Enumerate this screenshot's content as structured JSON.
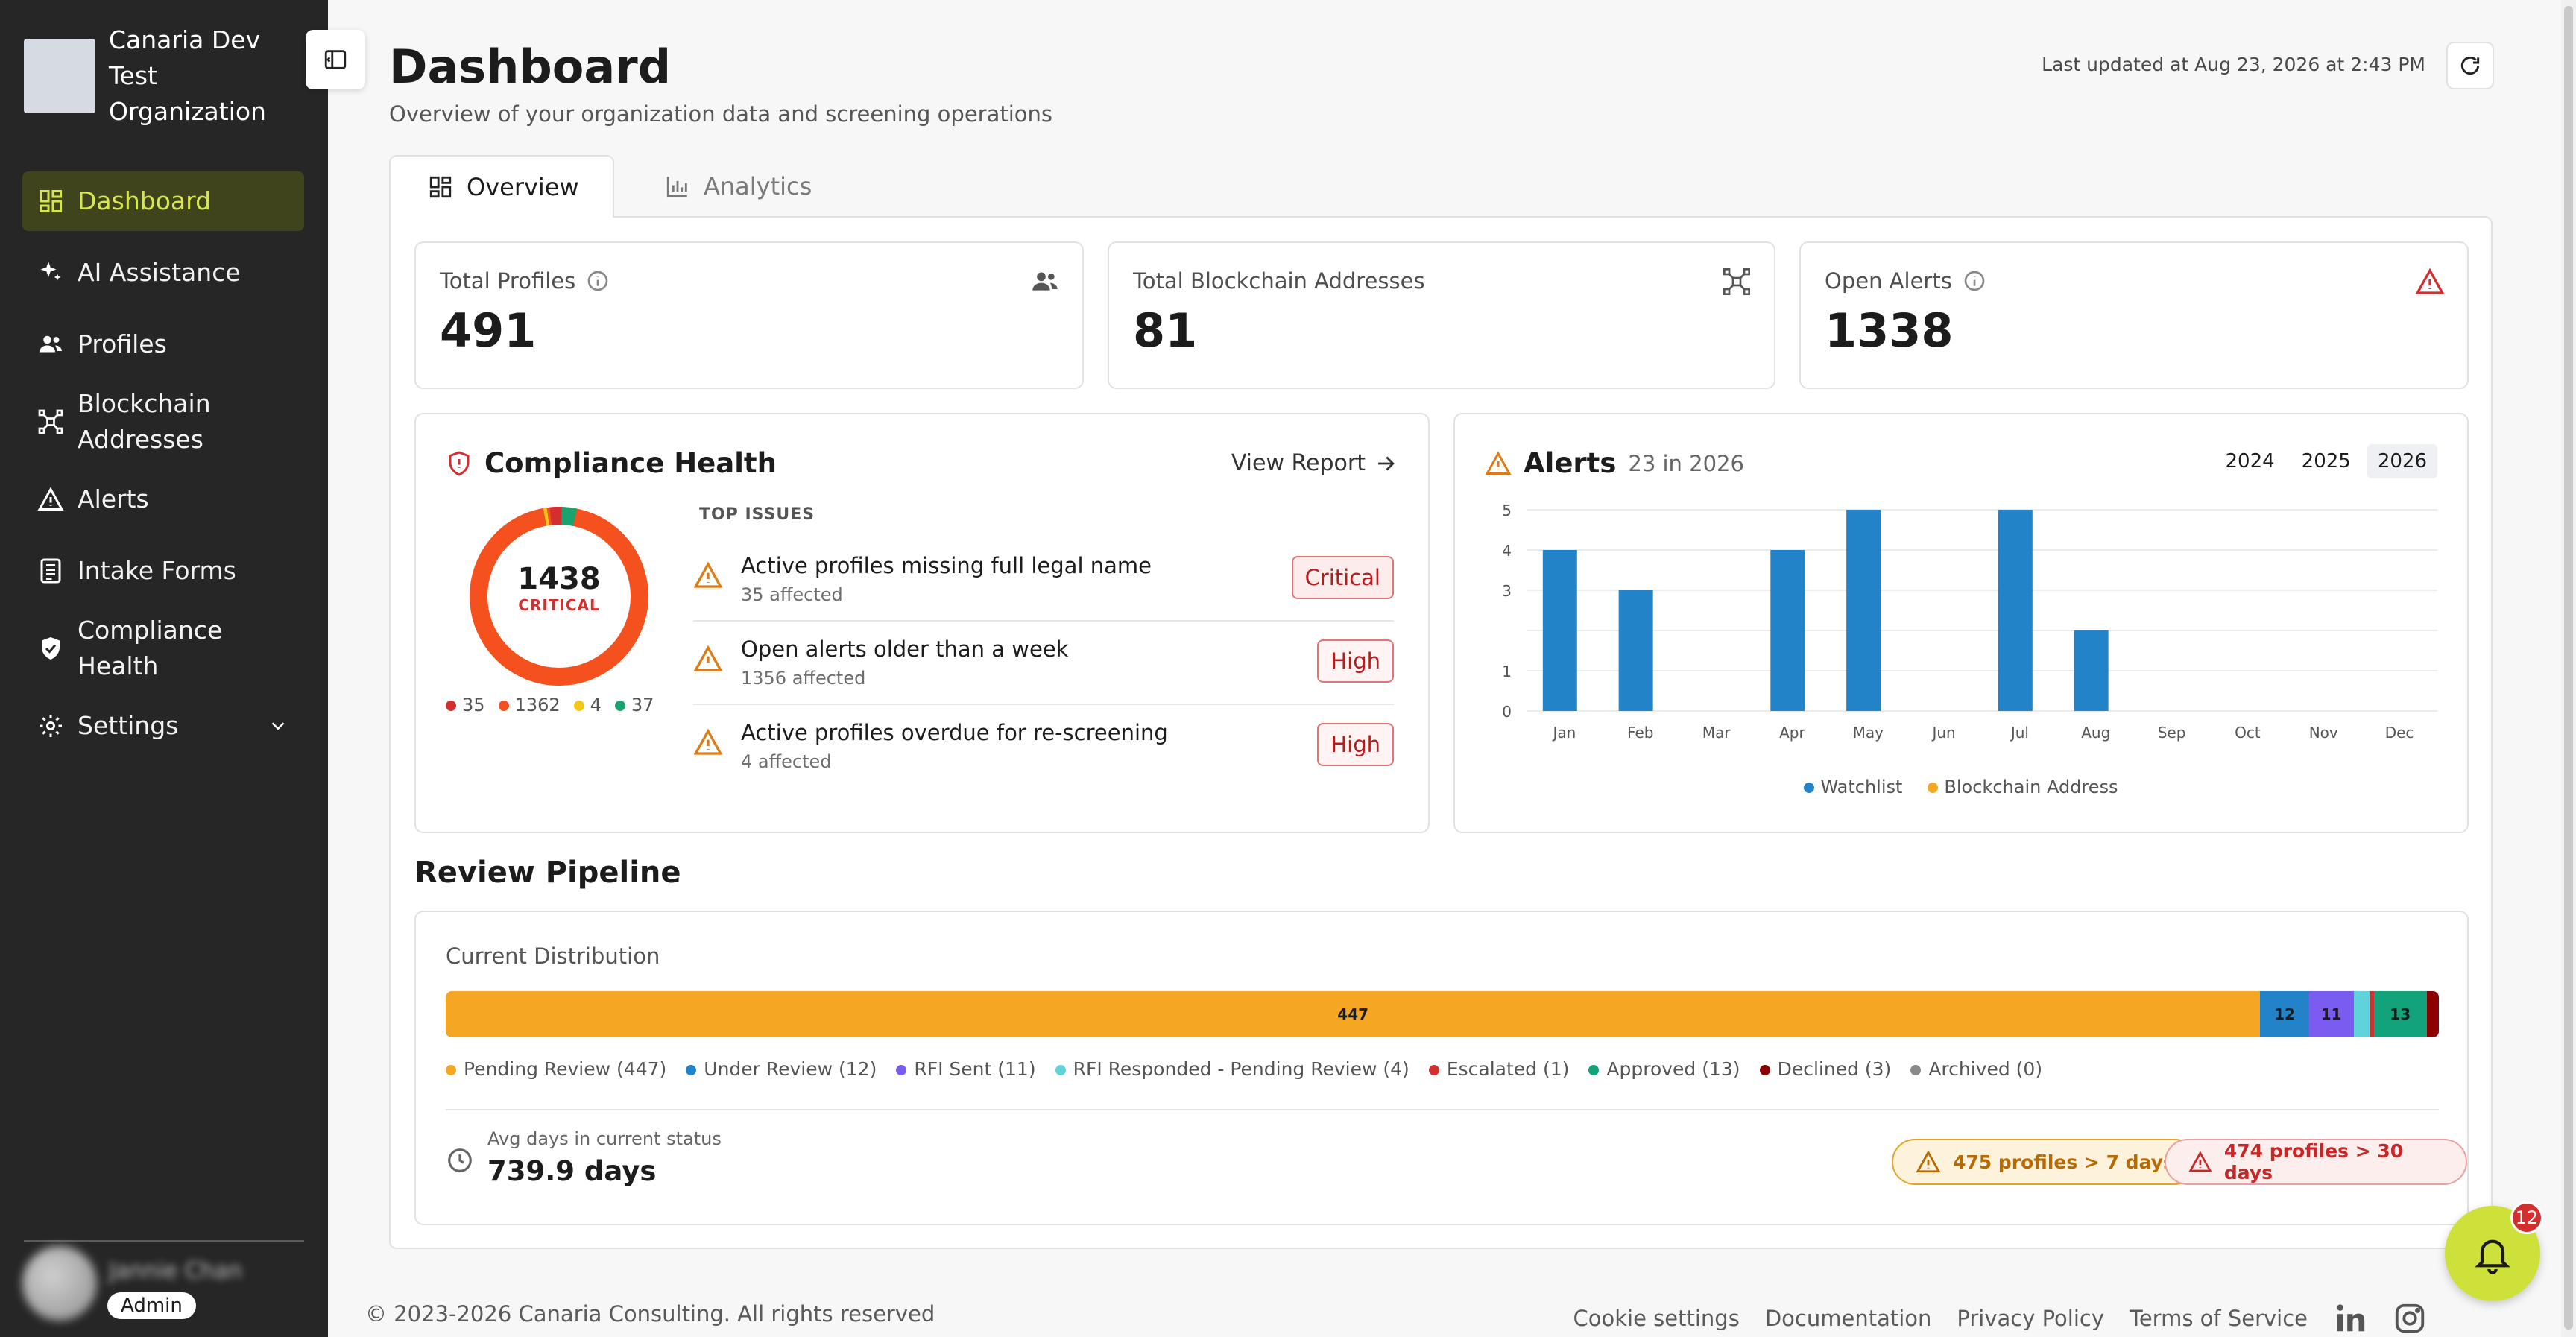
{
  "org": {
    "name": "Canaria Dev Test Organization"
  },
  "sidebar": {
    "items": [
      {
        "label": "Dashboard",
        "icon": "dashboard-icon",
        "active": true
      },
      {
        "label": "AI Assistance",
        "icon": "sparkle-icon"
      },
      {
        "label": "Profiles",
        "icon": "users-icon"
      },
      {
        "label": "Blockchain Addresses",
        "icon": "blockchain-icon"
      },
      {
        "label": "Alerts",
        "icon": "warning-icon"
      },
      {
        "label": "Intake Forms",
        "icon": "form-icon"
      },
      {
        "label": "Compliance Health",
        "icon": "shield-icon"
      },
      {
        "label": "Settings",
        "icon": "gear-icon"
      }
    ],
    "user": {
      "name": "Jannie Chan",
      "role": "Admin"
    }
  },
  "header": {
    "title": "Dashboard",
    "subtitle": "Overview of your organization data and screening operations",
    "last_updated": "Last updated at Aug 23, 2026 at 2:43 PM"
  },
  "tabs": [
    {
      "label": "Overview",
      "active": true
    },
    {
      "label": "Analytics",
      "active": false
    }
  ],
  "stats": {
    "profiles": {
      "label": "Total Profiles",
      "value": "491"
    },
    "blockchain": {
      "label": "Total Blockchain Addresses",
      "value": "81"
    },
    "alerts": {
      "label": "Open Alerts",
      "value": "1338"
    }
  },
  "compliance": {
    "title": "Compliance Health",
    "view_report": "View Report",
    "total": "1438",
    "status": "CRITICAL",
    "top_issues_label": "TOP ISSUES",
    "legend": [
      {
        "value": "35",
        "color": "#d32f2f"
      },
      {
        "value": "1362",
        "color": "#f4511e"
      },
      {
        "value": "4",
        "color": "#f5c518"
      },
      {
        "value": "37",
        "color": "#1aa36f"
      }
    ],
    "issues": [
      {
        "title": "Active profiles missing full legal name",
        "sub": "35 affected",
        "severity": "Critical"
      },
      {
        "title": "Open alerts older than a week",
        "sub": "1356 affected",
        "severity": "High"
      },
      {
        "title": "Active profiles overdue for re-screening",
        "sub": "4 affected",
        "severity": "High"
      }
    ]
  },
  "alerts_panel": {
    "title": "Alerts",
    "subtitle": "23 in 2026",
    "years": [
      "2024",
      "2025",
      "2026"
    ],
    "active_year": "2026"
  },
  "chart_data": {
    "type": "bar",
    "title": "Alerts",
    "categories": [
      "Jan",
      "Feb",
      "Mar",
      "Apr",
      "May",
      "Jun",
      "Jul",
      "Aug",
      "Sep",
      "Oct",
      "Nov",
      "Dec"
    ],
    "series": [
      {
        "name": "Watchlist",
        "color": "#2383c9",
        "values": [
          4,
          3,
          0,
          4,
          5,
          0,
          5,
          2,
          0,
          0,
          0,
          0
        ]
      },
      {
        "name": "Blockchain Address",
        "color": "#f5a623",
        "values": [
          0,
          0,
          0,
          0,
          0,
          0,
          0,
          0,
          0,
          0,
          0,
          0
        ]
      }
    ],
    "yticks": [
      "0",
      "1",
      "3",
      "4",
      "5"
    ],
    "ylim": [
      0,
      5
    ],
    "grid": true,
    "legend": "bottom"
  },
  "pipeline": {
    "title": "Review Pipeline",
    "subtitle": "Current Distribution",
    "segments": [
      {
        "label": "Pending Review",
        "count": 447,
        "color": "#f5a623",
        "legend": "Pending Review (447)"
      },
      {
        "label": "Under Review",
        "count": 12,
        "color": "#2383c9",
        "legend": "Under Review (12)"
      },
      {
        "label": "RFI Sent",
        "count": 11,
        "color": "#7b5cf0",
        "legend": "RFI Sent (11)"
      },
      {
        "label": "RFI Responded - Pending Review",
        "count": 4,
        "color": "#5fd3d9",
        "legend": "RFI Responded - Pending Review (4)"
      },
      {
        "label": "Escalated",
        "count": 1,
        "color": "#d32f2f",
        "legend": "Escalated (1)"
      },
      {
        "label": "Approved",
        "count": 13,
        "color": "#12a37a",
        "legend": "Approved (13)"
      },
      {
        "label": "Declined",
        "count": 3,
        "color": "#8b0000",
        "legend": "Declined (3)"
      },
      {
        "label": "Archived",
        "count": 0,
        "color": "#8a8a8a",
        "legend": "Archived (0)"
      }
    ],
    "avg_label": "Avg days in current status",
    "avg_value": "739.9 days",
    "warn_7": "475 profiles > 7 days",
    "warn_30": "474 profiles > 30 days"
  },
  "footer": {
    "copyright": "© 2023-2026 Canaria Consulting. All rights reserved",
    "links": [
      "Cookie settings",
      "Documentation",
      "Privacy Policy",
      "Terms of Service"
    ]
  },
  "notifications": {
    "count": "12"
  }
}
